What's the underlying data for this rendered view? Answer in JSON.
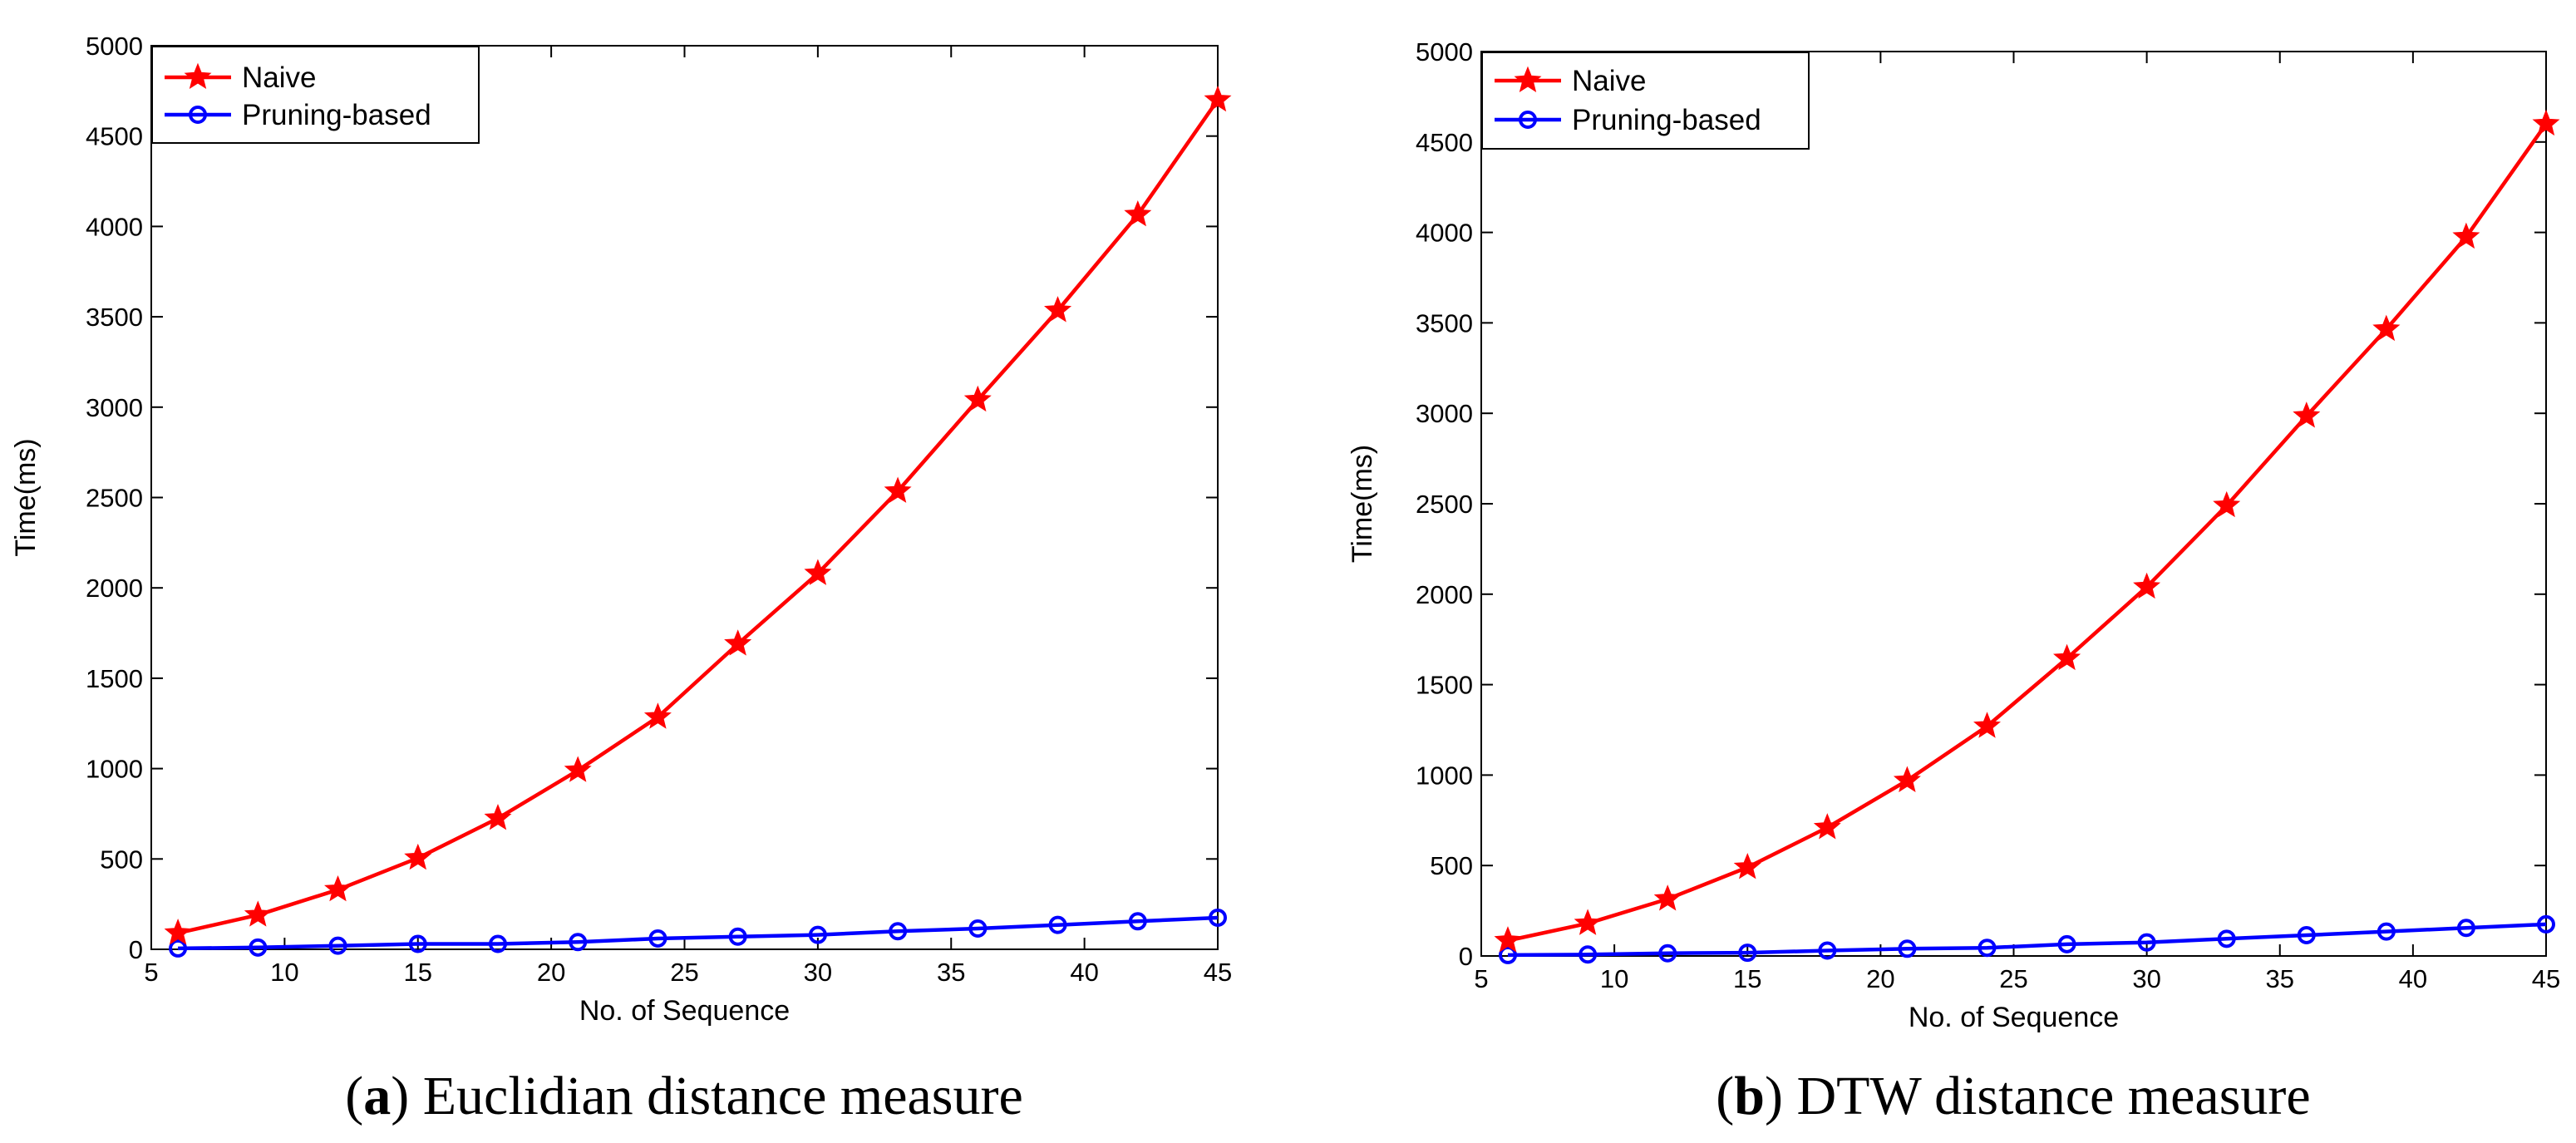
{
  "chart_data": [
    {
      "type": "line",
      "panel_letter": "a",
      "caption_text": " Euclidian distance measure",
      "xlabel": "No. of Sequence",
      "ylabel": "Time(ms)",
      "xlim": [
        5,
        45
      ],
      "ylim": [
        0,
        5000
      ],
      "xticks": [
        5,
        10,
        15,
        20,
        25,
        30,
        35,
        40,
        45
      ],
      "yticks": [
        0,
        500,
        1000,
        1500,
        2000,
        2500,
        3000,
        3500,
        4000,
        4500,
        5000
      ],
      "x": [
        6,
        9,
        12,
        15,
        18,
        21,
        24,
        27,
        30,
        33,
        36,
        39,
        42,
        45
      ],
      "legend_position": "top-left",
      "series": [
        {
          "name": "Naive",
          "color": "#ff0000",
          "marker": "star",
          "values": [
            90,
            190,
            330,
            505,
            725,
            990,
            1285,
            1690,
            2080,
            2535,
            3040,
            3535,
            4065,
            4700
          ]
        },
        {
          "name": "Pruning-based",
          "color": "#0000ff",
          "marker": "circle",
          "values": [
            5,
            10,
            20,
            30,
            30,
            40,
            60,
            70,
            80,
            100,
            115,
            135,
            155,
            175
          ]
        }
      ]
    },
    {
      "type": "line",
      "panel_letter": "b",
      "caption_text": " DTW distance measure",
      "xlabel": "No. of Sequence",
      "ylabel": "Time(ms)",
      "xlim": [
        5,
        45
      ],
      "ylim": [
        0,
        5000
      ],
      "xticks": [
        5,
        10,
        15,
        20,
        25,
        30,
        35,
        40,
        45
      ],
      "yticks": [
        0,
        500,
        1000,
        1500,
        2000,
        2500,
        3000,
        3500,
        4000,
        4500,
        5000
      ],
      "x": [
        6,
        9,
        12,
        15,
        18,
        21,
        24,
        27,
        30,
        33,
        36,
        39,
        42,
        45
      ],
      "legend_position": "top-left",
      "series": [
        {
          "name": "Naive",
          "color": "#ff0000",
          "marker": "star",
          "values": [
            85,
            180,
            315,
            490,
            710,
            970,
            1270,
            1645,
            2040,
            2490,
            2985,
            3465,
            3975,
            4600
          ]
        },
        {
          "name": "Pruning-based",
          "color": "#0000ff",
          "marker": "circle",
          "values": [
            5,
            8,
            15,
            18,
            30,
            40,
            45,
            65,
            75,
            95,
            115,
            135,
            155,
            175
          ]
        }
      ]
    }
  ]
}
